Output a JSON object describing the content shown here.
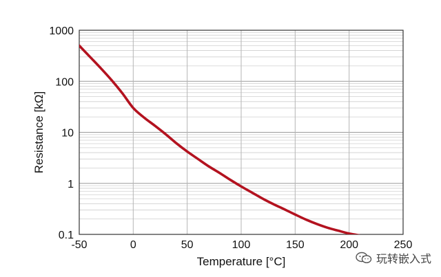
{
  "chart_data": {
    "type": "line",
    "title": "",
    "xlabel": "Temperature [°C]",
    "ylabel": "Resistance [kΩ]",
    "xlim": [
      -50,
      250
    ],
    "ylim": [
      0.1,
      1000
    ],
    "yscale": "log",
    "grid": true,
    "x_ticks": [
      -50,
      0,
      50,
      100,
      150,
      200,
      250
    ],
    "x_tick_labels": [
      "-50",
      "0",
      "50",
      "100",
      "150",
      "200",
      "250"
    ],
    "y_ticks": [
      0.1,
      1,
      10,
      100,
      1000
    ],
    "y_tick_labels": [
      "0.1",
      "1",
      "10",
      "100",
      "1000"
    ],
    "series": [
      {
        "color": "#b3121f",
        "x": [
          -50,
          -40,
          -30,
          -20,
          -10,
          0,
          10,
          20,
          30,
          40,
          50,
          60,
          70,
          80,
          90,
          100,
          110,
          120,
          130,
          140,
          150,
          160,
          170,
          180,
          190,
          200,
          210
        ],
        "y": [
          500,
          300,
          180,
          105,
          58,
          30,
          19.5,
          13.5,
          9.2,
          6.1,
          4.2,
          3.0,
          2.15,
          1.6,
          1.17,
          0.87,
          0.66,
          0.5,
          0.39,
          0.31,
          0.245,
          0.195,
          0.16,
          0.135,
          0.118,
          0.104,
          0.095
        ]
      }
    ]
  },
  "watermark": {
    "text": "玩转嵌入式",
    "icon": "wechat-icon"
  }
}
